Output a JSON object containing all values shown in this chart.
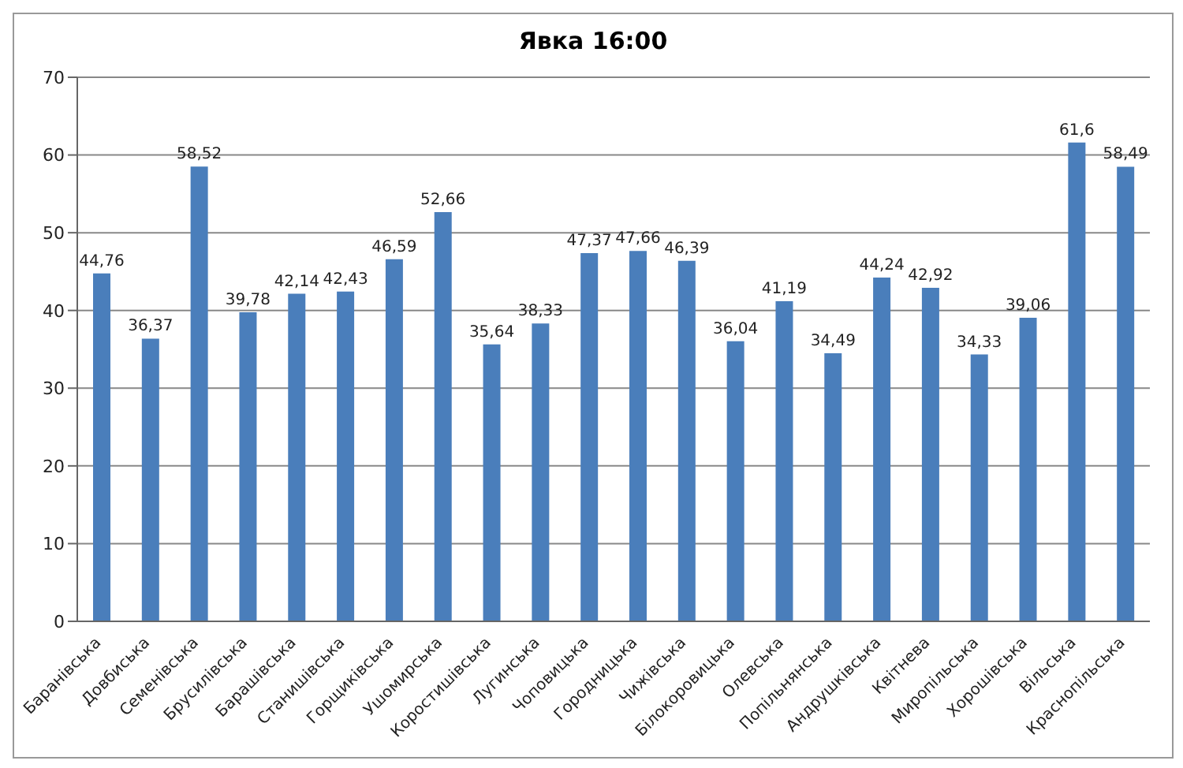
{
  "chart_data": {
    "type": "bar",
    "title": "Явка 16:00",
    "categories": [
      "Баранівська",
      "Довбиська",
      "Семенівська",
      "Брусилівська",
      "Барашівська",
      "Станишівська",
      "Горщиківська",
      "Ушомирська",
      "Коростишівська",
      "Лугинська",
      "Чоповицька",
      "Городницька",
      "Чижівська",
      "Білокоровицька",
      "Олевська",
      "Попільнянська",
      "Андрушківська",
      "Квітнева",
      "Миропільська",
      "Хорошівська",
      "Вільська",
      "Краснопільська"
    ],
    "values": [
      44.76,
      36.37,
      58.52,
      39.78,
      42.14,
      42.43,
      46.59,
      52.66,
      35.64,
      38.33,
      47.37,
      47.66,
      46.39,
      36.04,
      41.19,
      34.49,
      44.24,
      42.92,
      34.33,
      39.06,
      61.6,
      58.49
    ],
    "color": "#4a7ebb",
    "ylim": [
      0,
      70
    ],
    "yticks": [
      0,
      10,
      20,
      30,
      40,
      50,
      60,
      70
    ],
    "value_labels": [
      "44,76",
      "36,37",
      "58,52",
      "39,78",
      "42,14",
      "42,43",
      "46,59",
      "52,66",
      "35,64",
      "38,33",
      "47,37",
      "47,66",
      "46,39",
      "36,04",
      "41,19",
      "34,49",
      "44,24",
      "42,92",
      "34,33",
      "39,06",
      "61,6",
      "58,49"
    ],
    "grid": "y",
    "legend": false
  }
}
